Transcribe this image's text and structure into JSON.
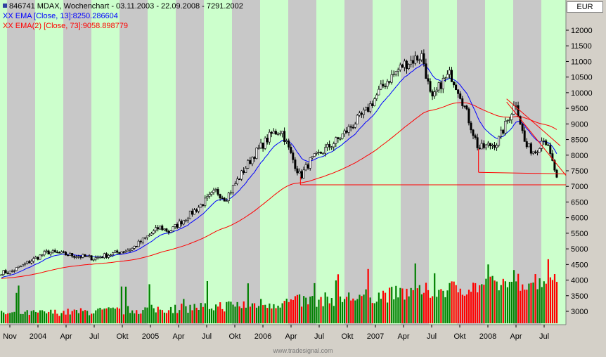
{
  "legend": {
    "title": "846741  MDAX, Wochenchart - 03.11.2003 - 22.09.2008 - 7291.2002",
    "ema13": "EMA [Close, 13]:8250.286604",
    "ema73": "EMA(2) [Close, 73]:9058.898779",
    "ema_prefix": "XX"
  },
  "currency": "EUR",
  "watermark": "www.tradesignal.com",
  "colors": {
    "bg_band": "#ccffcc",
    "alt_band": "#c8c8c8",
    "ema13": "#0000ff",
    "ema73": "#ff0000",
    "candle": "#000000",
    "vol_up": "#008000",
    "vol_down": "#ff0000",
    "trendline": "#ff0000"
  },
  "chart_data": {
    "type": "line",
    "title": "846741  MDAX, Wochenchart - 03.11.2003 - 22.09.2008 - 7291.2002",
    "x_tick_labels": [
      "Nov",
      "2004",
      "Apr",
      "Jul",
      "Okt",
      "2005",
      "Apr",
      "Jul",
      "Okt",
      "2006",
      "Apr",
      "Jul",
      "Okt",
      "2007",
      "Apr",
      "Jul",
      "Okt",
      "2008",
      "Apr",
      "Jul"
    ],
    "y_tick_labels": [
      "12000",
      "11500",
      "11000",
      "10500",
      "10000",
      "9500",
      "9000",
      "8500",
      "8000",
      "7500",
      "7000",
      "6500",
      "6000",
      "5500",
      "5000",
      "4500",
      "4000",
      "3500",
      "3000"
    ],
    "ylim": [
      2700,
      12400
    ],
    "price_anchors": [
      {
        "x": "2003-11",
        "y": 4250
      },
      {
        "x": "2004-03",
        "y": 4900
      },
      {
        "x": "2004-08",
        "y": 4700
      },
      {
        "x": "2004-12",
        "y": 5000
      },
      {
        "x": "2005-03",
        "y": 5700
      },
      {
        "x": "2005-04",
        "y": 5550
      },
      {
        "x": "2005-07",
        "y": 6300
      },
      {
        "x": "2005-09",
        "y": 6850
      },
      {
        "x": "2005-10",
        "y": 6600
      },
      {
        "x": "2006-01",
        "y": 8000
      },
      {
        "x": "2006-03",
        "y": 8700
      },
      {
        "x": "2006-04",
        "y": 8800
      },
      {
        "x": "2006-05",
        "y": 8000
      },
      {
        "x": "2006-06",
        "y": 7300
      },
      {
        "x": "2006-07",
        "y": 7800
      },
      {
        "x": "2006-10",
        "y": 8500
      },
      {
        "x": "2007-01",
        "y": 9400
      },
      {
        "x": "2007-03",
        "y": 10300
      },
      {
        "x": "2007-05",
        "y": 10900
      },
      {
        "x": "2007-07",
        "y": 11200
      },
      {
        "x": "2007-08",
        "y": 9700
      },
      {
        "x": "2007-09",
        "y": 10300
      },
      {
        "x": "2007-10",
        "y": 10600
      },
      {
        "x": "2007-11",
        "y": 10000
      },
      {
        "x": "2008-01",
        "y": 8200
      },
      {
        "x": "2008-02",
        "y": 8300
      },
      {
        "x": "2008-03",
        "y": 8400
      },
      {
        "x": "2008-05",
        "y": 9700
      },
      {
        "x": "2008-06",
        "y": 8300
      },
      {
        "x": "2008-07",
        "y": 8100
      },
      {
        "x": "2008-08",
        "y": 8600
      },
      {
        "x": "2008-09",
        "y": 7291
      }
    ],
    "series": [
      {
        "name": "EMA [Close, 13]",
        "last_value": 8250.286604
      },
      {
        "name": "EMA(2) [Close, 73]",
        "last_value": 9058.898779
      }
    ],
    "support_level": 7050,
    "grid": false,
    "volume_panel": true
  }
}
